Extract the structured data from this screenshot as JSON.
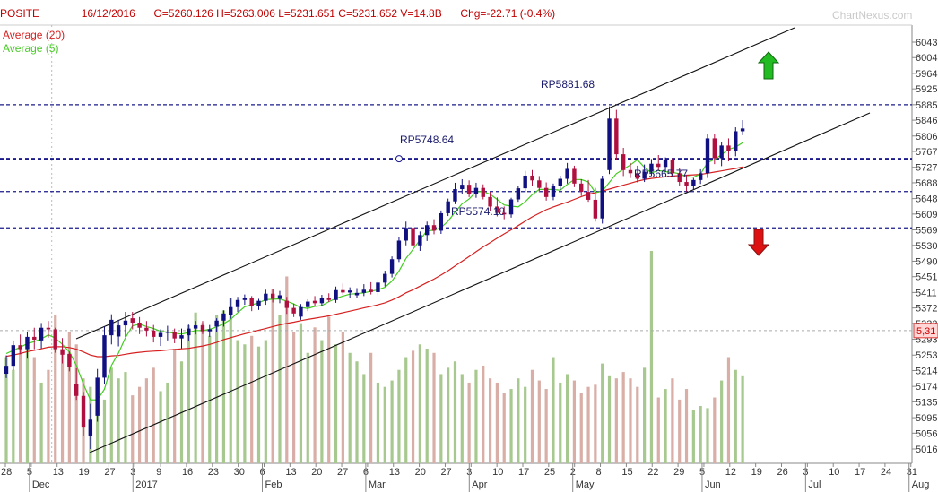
{
  "header": {
    "symbol": "POSITE",
    "date": "16/12/2016",
    "ohlc": "O=5260.126 H=5263.006 L=5231.651 C=5231.652 V=14.8B",
    "change": "Chg=-22.71 (-0.4%)",
    "watermark": "ChartNexus.com"
  },
  "legend": [
    {
      "label": "Average (20)",
      "color": "#d62020"
    },
    {
      "label": "Average (5)",
      "color": "#44cc22"
    }
  ],
  "chart_data": {
    "type": "candlestick",
    "ylim": [
      5000,
      6045
    ],
    "y_ticks": [
      "6043",
      "6004",
      "5964",
      "5925",
      "5885",
      "5846",
      "5806",
      "5767",
      "5727",
      "5688",
      "5648",
      "5609",
      "5569",
      "5530",
      "5490",
      "5451",
      "5411",
      "5372",
      "5333",
      "5293",
      "5253",
      "5214",
      "5174",
      "5135",
      "5095",
      "5056",
      "5016"
    ],
    "current_price_label": "5,31",
    "current_price": 5315,
    "x_ticks": [
      "28",
      "5",
      "13",
      "19",
      "27",
      "3",
      "9",
      "16",
      "23",
      "30",
      "6",
      "13",
      "20",
      "27",
      "6",
      "13",
      "20",
      "27",
      "3",
      "10",
      "17",
      "25",
      "2",
      "8",
      "15",
      "22",
      "29",
      "5",
      "12",
      "19",
      "26",
      "3",
      "10",
      "17",
      "24",
      "31"
    ],
    "month_labels": [
      {
        "label": "Dec",
        "tick": 1
      },
      {
        "label": "2017",
        "tick": 5
      },
      {
        "label": "Feb",
        "tick": 10
      },
      {
        "label": "Mar",
        "tick": 14
      },
      {
        "label": "Apr",
        "tick": 18
      },
      {
        "label": "May",
        "tick": 22
      },
      {
        "label": "Jun",
        "tick": 27
      },
      {
        "label": "Jul",
        "tick": 31
      },
      {
        "label": "Aug",
        "tick": 35
      }
    ],
    "annotations": [
      {
        "text": "RP5881.68",
        "price": 5881.68
      },
      {
        "text": "RP5748.64",
        "price": 5748.64
      },
      {
        "text": "RP5665.77",
        "price": 5665.77
      },
      {
        "text": "RP5574.18",
        "price": 5574.18
      }
    ],
    "candles": [
      [
        5206,
        5252,
        5195,
        5226
      ],
      [
        5226,
        5290,
        5215,
        5278
      ],
      [
        5278,
        5305,
        5255,
        5268
      ],
      [
        5268,
        5312,
        5244,
        5299
      ],
      [
        5299,
        5322,
        5268,
        5292
      ],
      [
        5290,
        5334,
        5270,
        5322
      ],
      [
        5322,
        5339,
        5297,
        5318
      ],
      [
        5318,
        5322,
        5259,
        5268
      ],
      [
        5268,
        5296,
        5232,
        5254
      ],
      [
        5256,
        5262,
        5212,
        5222
      ],
      [
        5180,
        5220,
        5140,
        5150
      ],
      [
        5150,
        5160,
        5050,
        5070
      ],
      [
        5050,
        5130,
        5016,
        5090
      ],
      [
        5100,
        5218,
        5085,
        5196
      ],
      [
        5196,
        5325,
        5180,
        5303
      ],
      [
        5303,
        5356,
        5280,
        5342
      ],
      [
        5300,
        5342,
        5275,
        5328
      ],
      [
        5328,
        5362,
        5299,
        5340
      ],
      [
        5346,
        5362,
        5318,
        5335
      ],
      [
        5335,
        5349,
        5306,
        5322
      ],
      [
        5322,
        5339,
        5300,
        5315
      ],
      [
        5315,
        5329,
        5285,
        5299
      ],
      [
        5299,
        5318,
        5276,
        5309
      ],
      [
        5309,
        5327,
        5290,
        5312
      ],
      [
        5312,
        5320,
        5283,
        5295
      ],
      [
        5295,
        5320,
        5270,
        5303
      ],
      [
        5303,
        5330,
        5289,
        5320
      ],
      [
        5320,
        5339,
        5305,
        5328
      ],
      [
        5328,
        5339,
        5306,
        5313
      ],
      [
        5313,
        5329,
        5299,
        5318
      ],
      [
        5325,
        5346,
        5312,
        5340
      ],
      [
        5340,
        5366,
        5325,
        5358
      ],
      [
        5354,
        5396,
        5345,
        5374
      ],
      [
        5374,
        5400,
        5362,
        5392
      ],
      [
        5392,
        5406,
        5380,
        5398
      ],
      [
        5398,
        5402,
        5364,
        5378
      ],
      [
        5378,
        5395,
        5367,
        5390
      ],
      [
        5390,
        5418,
        5380,
        5408
      ],
      [
        5408,
        5419,
        5386,
        5395
      ],
      [
        5395,
        5415,
        5384,
        5404
      ],
      [
        5390,
        5400,
        5357,
        5372
      ],
      [
        5372,
        5383,
        5349,
        5358
      ],
      [
        5350,
        5382,
        5342,
        5374
      ],
      [
        5374,
        5394,
        5364,
        5388
      ],
      [
        5390,
        5402,
        5377,
        5384
      ],
      [
        5384,
        5405,
        5376,
        5398
      ],
      [
        5398,
        5409,
        5387,
        5392
      ],
      [
        5392,
        5426,
        5385,
        5417
      ],
      [
        5417,
        5434,
        5404,
        5411
      ],
      [
        5411,
        5424,
        5396,
        5416
      ],
      [
        5404,
        5422,
        5396,
        5410
      ],
      [
        5410,
        5432,
        5402,
        5418
      ],
      [
        5418,
        5437,
        5406,
        5412
      ],
      [
        5412,
        5444,
        5402,
        5436
      ],
      [
        5436,
        5466,
        5426,
        5458
      ],
      [
        5458,
        5502,
        5449,
        5495
      ],
      [
        5495,
        5552,
        5488,
        5542
      ],
      [
        5542,
        5590,
        5530,
        5574
      ],
      [
        5574,
        5586,
        5521,
        5530
      ],
      [
        5530,
        5565,
        5516,
        5556
      ],
      [
        5556,
        5590,
        5541,
        5581
      ],
      [
        5581,
        5596,
        5558,
        5567
      ],
      [
        5567,
        5618,
        5559,
        5611
      ],
      [
        5611,
        5648,
        5604,
        5641
      ],
      [
        5641,
        5688,
        5634,
        5672
      ],
      [
        5672,
        5697,
        5660,
        5683
      ],
      [
        5683,
        5694,
        5652,
        5660
      ],
      [
        5660,
        5688,
        5650,
        5675
      ],
      [
        5675,
        5684,
        5646,
        5652
      ],
      [
        5652,
        5665,
        5617,
        5628
      ],
      [
        5628,
        5651,
        5603,
        5612
      ],
      [
        5612,
        5628,
        5596,
        5608
      ],
      [
        5608,
        5650,
        5600,
        5646
      ],
      [
        5646,
        5681,
        5640,
        5674
      ],
      [
        5674,
        5718,
        5664,
        5706
      ],
      [
        5706,
        5720,
        5680,
        5694
      ],
      [
        5694,
        5705,
        5664,
        5675
      ],
      [
        5675,
        5689,
        5643,
        5652
      ],
      [
        5652,
        5686,
        5644,
        5679
      ],
      [
        5679,
        5706,
        5670,
        5698
      ],
      [
        5698,
        5738,
        5686,
        5723
      ],
      [
        5723,
        5731,
        5677,
        5686
      ],
      [
        5686,
        5697,
        5655,
        5665
      ],
      [
        5665,
        5695,
        5640,
        5645
      ],
      [
        5645,
        5675,
        5590,
        5598
      ],
      [
        5598,
        5706,
        5585,
        5698
      ],
      [
        5720,
        5881,
        5710,
        5850
      ],
      [
        5850,
        5872,
        5745,
        5760
      ],
      [
        5760,
        5776,
        5705,
        5720
      ],
      [
        5720,
        5738,
        5700,
        5712
      ],
      [
        5712,
        5731,
        5689,
        5698
      ],
      [
        5698,
        5734,
        5690,
        5716
      ],
      [
        5716,
        5748,
        5705,
        5736
      ],
      [
        5736,
        5758,
        5719,
        5728
      ],
      [
        5728,
        5752,
        5715,
        5745
      ],
      [
        5745,
        5750,
        5708,
        5712
      ],
      [
        5712,
        5724,
        5680,
        5690
      ],
      [
        5690,
        5708,
        5666,
        5680
      ],
      [
        5680,
        5700,
        5670,
        5695
      ],
      [
        5695,
        5722,
        5685,
        5712
      ],
      [
        5712,
        5810,
        5700,
        5800
      ],
      [
        5800,
        5812,
        5735,
        5750
      ],
      [
        5750,
        5790,
        5730,
        5782
      ],
      [
        5782,
        5800,
        5742,
        5768
      ],
      [
        5768,
        5828,
        5755,
        5818
      ],
      [
        5818,
        5846,
        5808,
        5825
      ]
    ],
    "sma5": [
      5257,
      5265,
      5273,
      5282,
      5287,
      5294,
      5304,
      5296,
      5280,
      5261,
      5227,
      5180,
      5140,
      5140,
      5167,
      5227,
      5258,
      5297,
      5327,
      5331,
      5325,
      5320,
      5313,
      5311,
      5308,
      5306,
      5310,
      5315,
      5315,
      5318,
      5324,
      5332,
      5343,
      5360,
      5375,
      5380,
      5385,
      5393,
      5394,
      5395,
      5389,
      5382,
      5373,
      5371,
      5376,
      5378,
      5388,
      5396,
      5402,
      5407,
      5408,
      5410,
      5414,
      5418,
      5424,
      5440,
      5465,
      5497,
      5520,
      5544,
      5567,
      5568,
      5575,
      5591,
      5614,
      5635,
      5647,
      5665,
      5666,
      5659,
      5646,
      5632,
      5629,
      5627,
      5640,
      5658,
      5671,
      5671,
      5671,
      5669,
      5684,
      5696,
      5696,
      5690,
      5663,
      5667,
      5689,
      5711,
      5722,
      5733,
      5746,
      5727,
      5713,
      5719,
      5716,
      5714,
      5711,
      5704,
      5702,
      5710,
      5739,
      5747,
      5759,
      5772,
      5778,
      5789
    ],
    "sma20": [
      5250,
      5253,
      5257,
      5262,
      5265,
      5269,
      5273,
      5274,
      5274,
      5272,
      5268,
      5261,
      5253,
      5249,
      5249,
      5251,
      5252,
      5255,
      5258,
      5260,
      5262,
      5263,
      5264,
      5266,
      5267,
      5269,
      5270,
      5273,
      5276,
      5280,
      5285,
      5292,
      5297,
      5302,
      5307,
      5311,
      5316,
      5320,
      5325,
      5329,
      5333,
      5336,
      5340,
      5343,
      5346,
      5349,
      5352,
      5356,
      5360,
      5364,
      5368,
      5372,
      5376,
      5380,
      5385,
      5392,
      5400,
      5410,
      5418,
      5427,
      5436,
      5445,
      5455,
      5466,
      5478,
      5490,
      5502,
      5514,
      5526,
      5537,
      5548,
      5559,
      5569,
      5580,
      5591,
      5602,
      5611,
      5620,
      5627,
      5633,
      5639,
      5646,
      5653,
      5659,
      5663,
      5667,
      5672,
      5677,
      5682,
      5687,
      5692,
      5696,
      5699,
      5701,
      5703,
      5705,
      5706,
      5707,
      5708,
      5709,
      5712,
      5715,
      5718,
      5721,
      5724,
      5728
    ],
    "volume": [
      0.5,
      0.44,
      0.55,
      0.57,
      0.5,
      0.38,
      0.44,
      0.7,
      0.52,
      0.62,
      0.56,
      0.4,
      0.36,
      0.33,
      0.3,
      0.45,
      0.4,
      0.43,
      0.32,
      0.36,
      0.4,
      0.45,
      0.34,
      0.38,
      0.54,
      0.48,
      0.65,
      0.71,
      0.66,
      0.6,
      0.7,
      0.72,
      0.78,
      0.58,
      0.56,
      0.6,
      0.55,
      0.58,
      0.82,
      0.7,
      0.88,
      0.62,
      0.66,
      0.52,
      0.64,
      0.58,
      0.69,
      0.56,
      0.62,
      0.52,
      0.48,
      0.42,
      0.52,
      0.38,
      0.36,
      0.39,
      0.44,
      0.5,
      0.53,
      0.56,
      0.54,
      0.52,
      0.42,
      0.45,
      0.48,
      0.42,
      0.38,
      0.44,
      0.46,
      0.4,
      0.38,
      0.33,
      0.35,
      0.4,
      0.36,
      0.44,
      0.39,
      0.35,
      0.5,
      0.38,
      0.42,
      0.39,
      0.33,
      0.36,
      0.37,
      0.47,
      0.41,
      0.4,
      0.43,
      0.4,
      0.36,
      0.45,
      0.44,
      0.31,
      0.35,
      0.4,
      0.3,
      0.35,
      0.25,
      0.27,
      0.26,
      0.31,
      0.39,
      0.5,
      0.44,
      0.41
    ],
    "volume_special": [
      {
        "index": 92,
        "value": 1.0
      }
    ],
    "volume_ref_max": 1.0
  }
}
